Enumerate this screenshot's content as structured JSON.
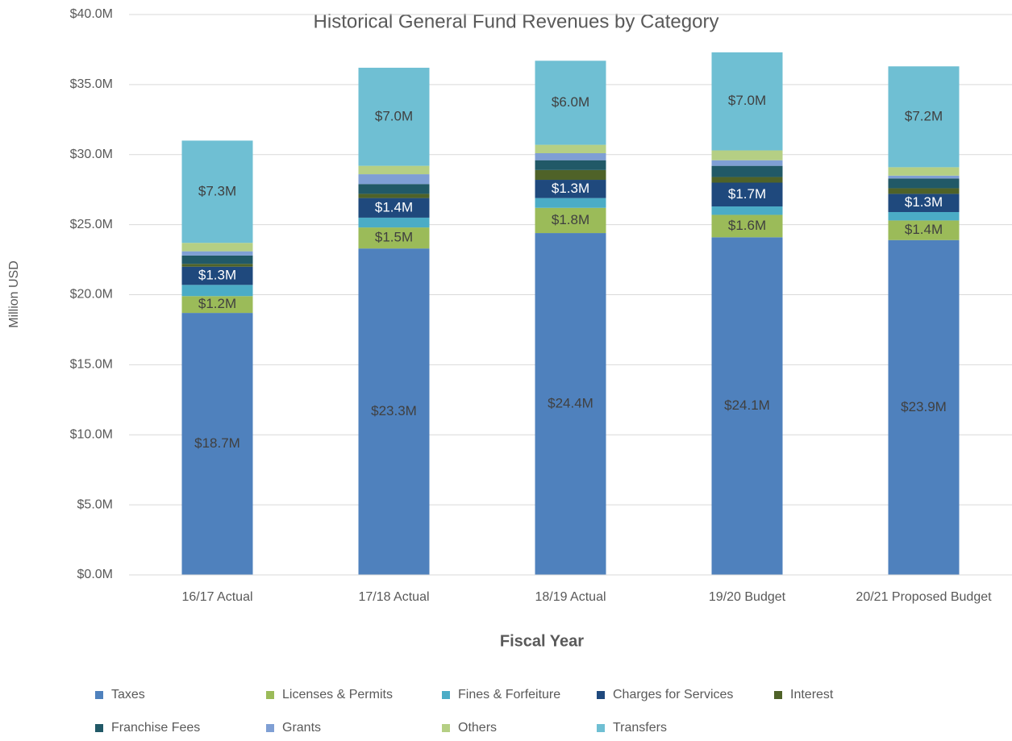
{
  "chart_data": {
    "type": "stacked_bar",
    "title": "Historical General Fund Revenues by Category",
    "x_label": "Fiscal Year",
    "y_label": "Million USD",
    "categories": [
      "16/17 Actual",
      "17/18 Actual",
      "18/19 Actual",
      "19/20 Budget",
      "20/21 Proposed Budget"
    ],
    "ylim": [
      0,
      40
    ],
    "yticks": [
      {
        "value": 0,
        "label": "$0.0M"
      },
      {
        "value": 5,
        "label": "$5.0M"
      },
      {
        "value": 10,
        "label": "$10.0M"
      },
      {
        "value": 15,
        "label": "$15.0M"
      },
      {
        "value": 20,
        "label": "$20.0M"
      },
      {
        "value": 25,
        "label": "$25.0M"
      },
      {
        "value": 30,
        "label": "$30.0M"
      },
      {
        "value": 35,
        "label": "$35.0M"
      },
      {
        "value": 40,
        "label": "$40.0M"
      }
    ],
    "grid": true,
    "legend": "bottom",
    "series": [
      {
        "name": "Taxes",
        "color": "#4f81bd",
        "values": [
          18.7,
          23.3,
          24.4,
          24.1,
          23.9
        ],
        "value_labels": [
          "$18.7M",
          "$23.3M",
          "$24.4M",
          "$24.1M",
          "$23.9M"
        ]
      },
      {
        "name": "Licenses & Permits",
        "color": "#9bbb59",
        "values": [
          1.2,
          1.5,
          1.8,
          1.6,
          1.4
        ],
        "value_labels": [
          "$1.2M",
          "$1.5M",
          "$1.8M",
          "$1.6M",
          "$1.4M"
        ]
      },
      {
        "name": "Fines & Forfeiture",
        "color": "#4bacc6",
        "values": [
          0.8,
          0.7,
          0.7,
          0.6,
          0.6
        ]
      },
      {
        "name": "Charges for Services",
        "color": "#1f497d",
        "values": [
          1.3,
          1.4,
          1.3,
          1.7,
          1.3
        ],
        "value_labels": [
          "$1.3M",
          "$1.4M",
          "$1.3M",
          "$1.7M",
          "$1.3M"
        ]
      },
      {
        "name": "Interest",
        "color": "#4f6228",
        "values": [
          0.2,
          0.3,
          0.7,
          0.4,
          0.4
        ]
      },
      {
        "name": "Franchise Fees",
        "color": "#215967",
        "values": [
          0.6,
          0.7,
          0.7,
          0.8,
          0.7
        ]
      },
      {
        "name": "Grants",
        "color": "#7f9fd4",
        "values": [
          0.3,
          0.7,
          0.5,
          0.4,
          0.2
        ]
      },
      {
        "name": "Others",
        "color": "#b5cf84",
        "values": [
          0.6,
          0.6,
          0.6,
          0.7,
          0.6
        ]
      },
      {
        "name": "Transfers",
        "color": "#6fbfd3",
        "values": [
          7.3,
          7.0,
          6.0,
          7.0,
          7.2
        ],
        "value_labels": [
          "$7.3M",
          "$7.0M",
          "$6.0M",
          "$7.0M",
          "$7.2M"
        ]
      }
    ]
  }
}
